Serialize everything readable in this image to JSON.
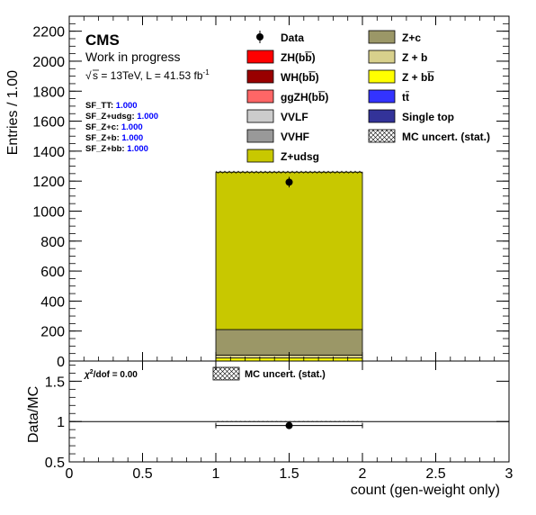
{
  "chart_data": [
    {
      "panel": "main",
      "type": "bar",
      "stacked": true,
      "ylabel": "Entries / 1.00",
      "xlim": [
        0,
        3
      ],
      "ylim": [
        0,
        2300
      ],
      "xticks": [
        "0",
        "0.5",
        "1",
        "1.5",
        "2",
        "2.5",
        "3"
      ],
      "yticks": [
        "0",
        "200",
        "400",
        "600",
        "800",
        "1000",
        "1200",
        "1400",
        "1600",
        "1800",
        "2000",
        "2200"
      ],
      "bin": [
        1,
        2
      ],
      "series": [
        {
          "name": "Z + bb̅",
          "value": 20,
          "color": "#ffff00"
        },
        {
          "name": "Z + b",
          "value": 20,
          "color": "#d8d08c"
        },
        {
          "name": "Z+c",
          "value": 170,
          "color": "#9b9767"
        },
        {
          "name": "Z+udsg",
          "value": 1050,
          "color": "#c8c800"
        }
      ],
      "mc_total": 1260,
      "mc_stat_uncert": 8,
      "data_point": {
        "x": 1.5,
        "y": 1193,
        "yerr": 35
      },
      "legend": [
        {
          "label": "Data",
          "style": "marker",
          "color": "#000000"
        },
        {
          "label": "ZH(bb̅)",
          "style": "box",
          "color": "#ff0000"
        },
        {
          "label": "WH(bb̅)",
          "style": "box",
          "color": "#990000"
        },
        {
          "label": "ggZH(bb̅)",
          "style": "box",
          "color": "#ff6666"
        },
        {
          "label": "VVLF",
          "style": "box",
          "color": "#cccccc"
        },
        {
          "label": "VVHF",
          "style": "box",
          "color": "#999999"
        },
        {
          "label": "Z+udsg",
          "style": "box",
          "color": "#c8c800"
        },
        {
          "label": "Z+c",
          "style": "box",
          "color": "#9b9767"
        },
        {
          "label": "Z + b",
          "style": "box",
          "color": "#d8d08c"
        },
        {
          "label": "Z + bb̅",
          "style": "box",
          "color": "#ffff00"
        },
        {
          "label": "tt̅",
          "style": "box",
          "color": "#3333ff"
        },
        {
          "label": "Single top",
          "style": "box",
          "color": "#333399"
        },
        {
          "label": "MC uncert. (stat.)",
          "style": "hatch",
          "color": "#000000"
        }
      ],
      "legend_placement": "top-right"
    },
    {
      "panel": "ratio",
      "type": "scatter",
      "ylabel": "Data/MC",
      "xlabel": "count (gen-weight only)",
      "xlim": [
        0,
        3
      ],
      "ylim": [
        0.5,
        1.75
      ],
      "xticks": [
        "0",
        "0.5",
        "1",
        "1.5",
        "2",
        "2.5",
        "3"
      ],
      "yticks": [
        "0.5",
        "1",
        "1.5"
      ],
      "ratio_point": {
        "x": 1.5,
        "y": 0.95,
        "xerr": 0.5
      },
      "uncert_band": {
        "xrange": [
          1,
          2
        ],
        "half_width": 0.006
      },
      "reference_line": 1,
      "chi2_label": "/dof = 0.00",
      "legend": [
        {
          "label": "MC uncert. (stat.)",
          "style": "hatch"
        }
      ]
    }
  ],
  "annotations": {
    "cms": "CMS",
    "work_in_progress": "Work in progress",
    "energy_prefix": "s = 13TeV, L = 41.53 fb",
    "energy_suffix": "-1",
    "scale_factors": [
      {
        "label": "SF_TT: ",
        "value": "1.000"
      },
      {
        "label": "SF_Z+udsg: ",
        "value": "1.000"
      },
      {
        "label": "SF_Z+c: ",
        "value": "1.000"
      },
      {
        "label": "SF_Z+b: ",
        "value": "1.000"
      },
      {
        "label": "SF_Z+bb: ",
        "value": "1.000"
      }
    ]
  },
  "colors": {
    "scale_factor_value": "#0000ff",
    "frame": "#000000"
  }
}
